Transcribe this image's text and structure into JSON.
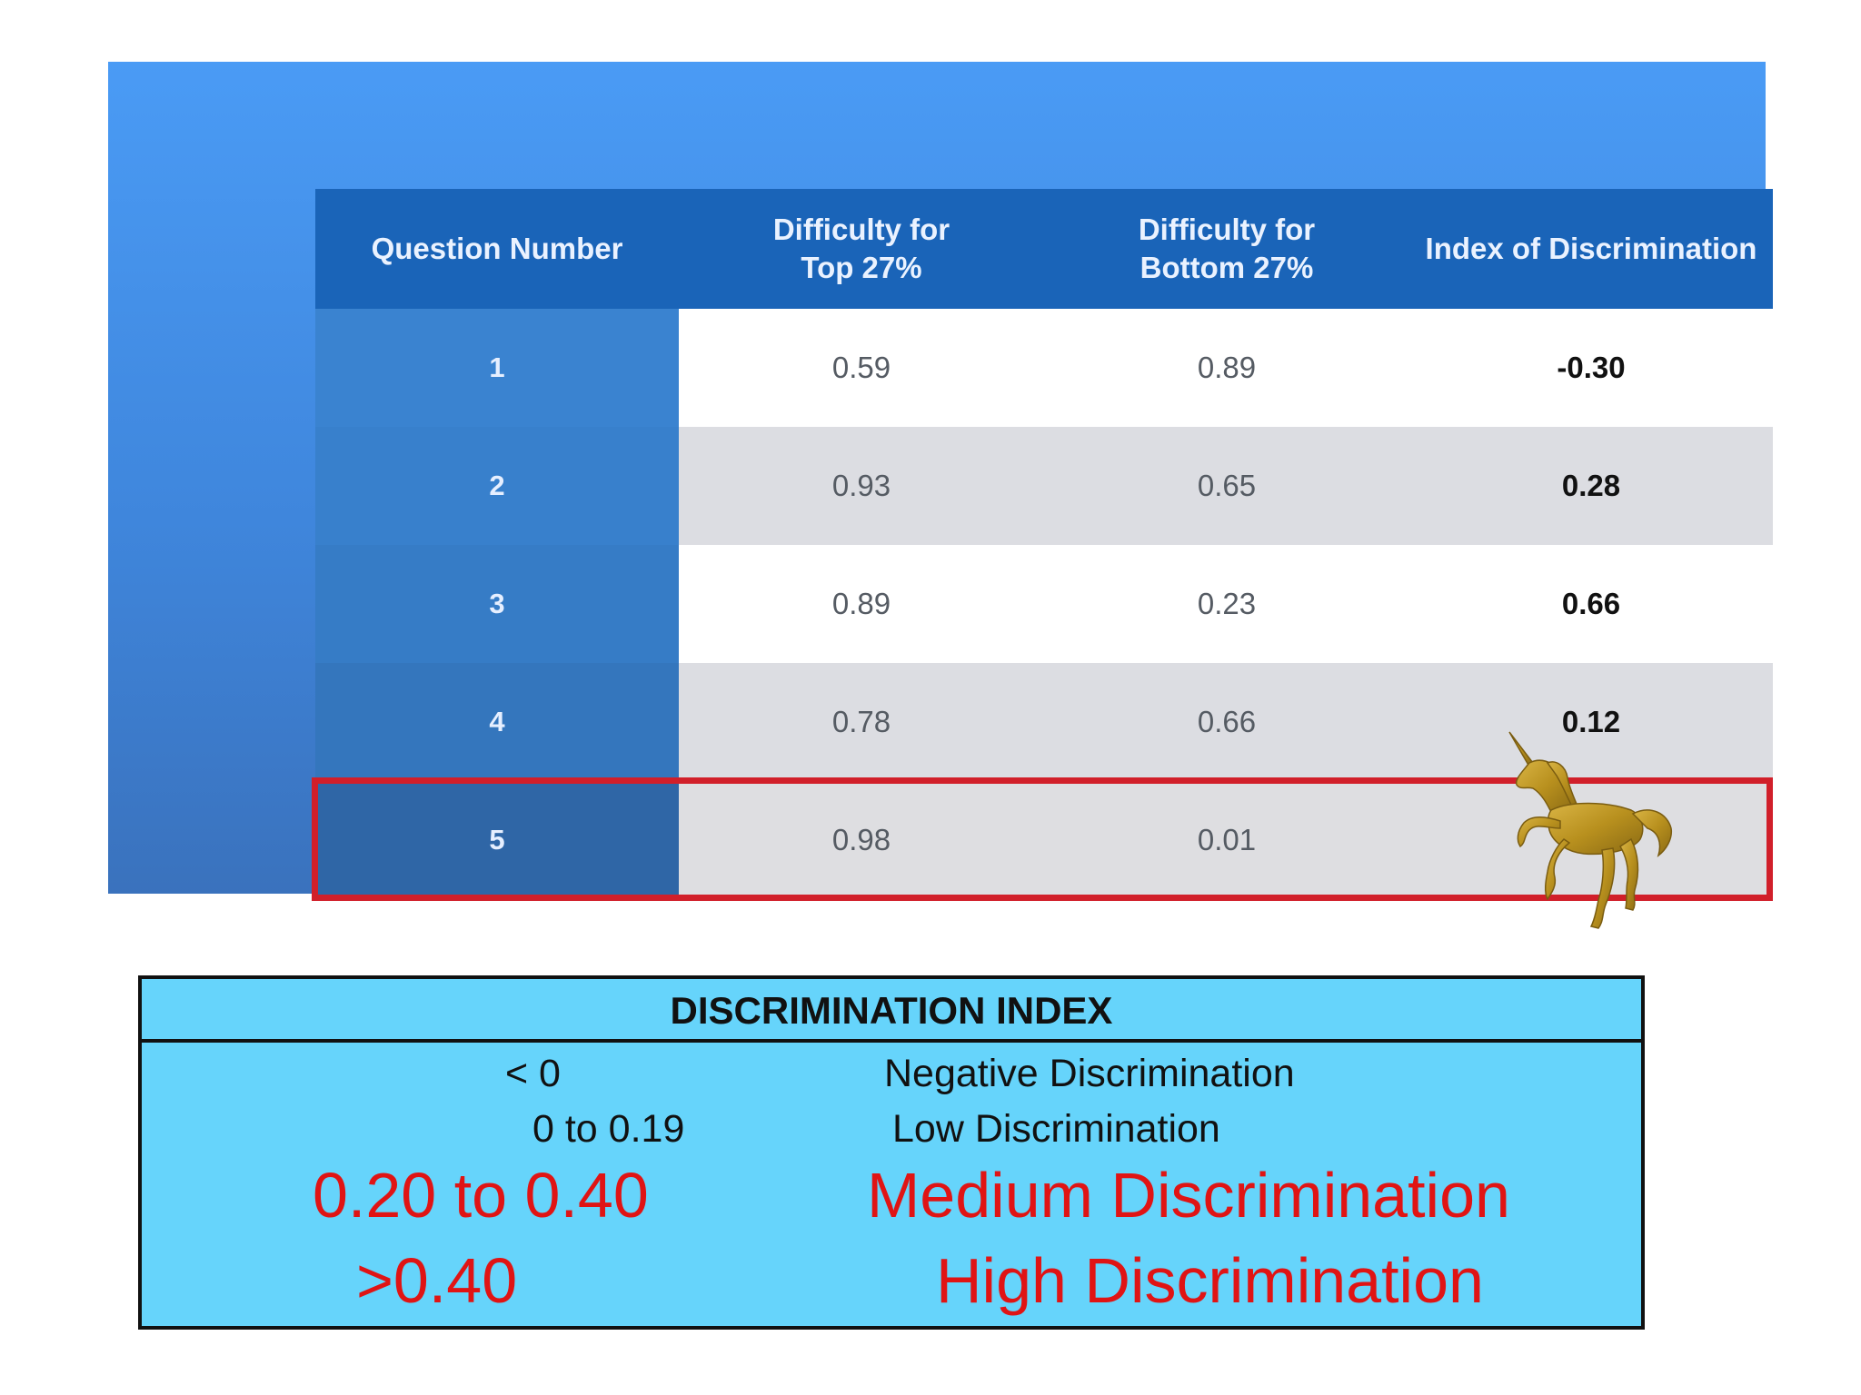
{
  "table": {
    "headers": [
      "Question Number",
      "Difficulty for\nTop 27%",
      "Difficulty for\nBottom 27%",
      "Index of Discrimination"
    ],
    "rows": [
      {
        "q": "1",
        "top": "0.59",
        "bottom": "0.89",
        "index": "-0.30"
      },
      {
        "q": "2",
        "top": "0.93",
        "bottom": "0.65",
        "index": "0.28"
      },
      {
        "q": "3",
        "top": "0.89",
        "bottom": "0.23",
        "index": "0.66"
      },
      {
        "q": "4",
        "top": "0.78",
        "bottom": "0.66",
        "index": "0.12"
      },
      {
        "q": "5",
        "top": "0.98",
        "bottom": "0.01",
        "index": ""
      }
    ],
    "highlight_color": "#d11f2a",
    "header_color": "#1a64b8"
  },
  "decoration": {
    "icon": "unicorn-icon",
    "color": "#b8901e"
  },
  "legend": {
    "title": "DISCRIMINATION INDEX",
    "items": [
      {
        "range": "< 0",
        "label": "Negative Discrimination"
      },
      {
        "range": "0 to 0.19",
        "label": "Low Discrimination"
      },
      {
        "range": "0.20 to 0.40",
        "label": "Medium Discrimination"
      },
      {
        "range": ">0.40",
        "label": "High Discrimination"
      }
    ],
    "background": "#66d4fb",
    "emphasis_color": "#e01414"
  }
}
